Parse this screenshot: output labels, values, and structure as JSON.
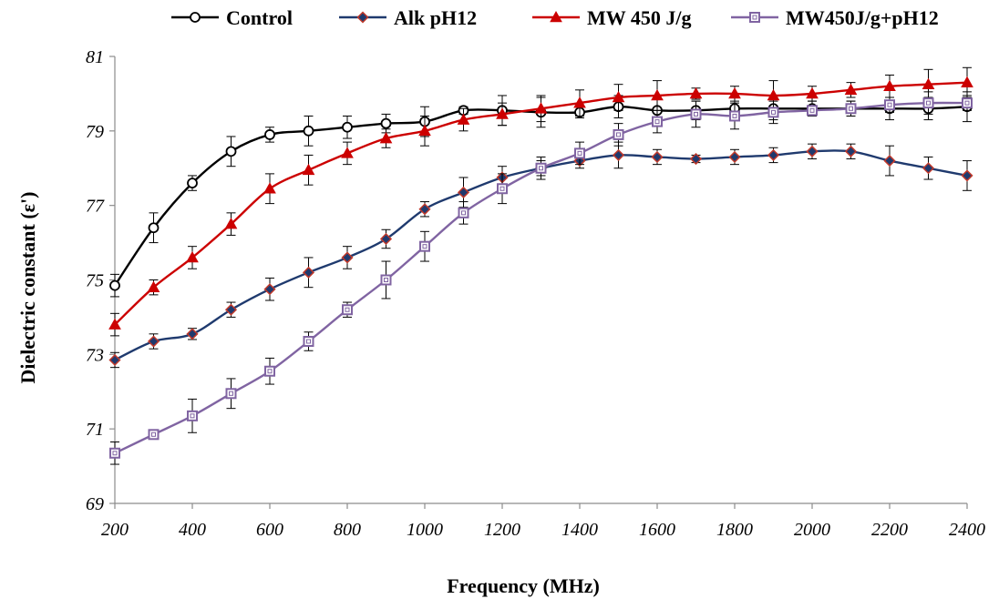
{
  "chart_data": {
    "type": "line",
    "title": "",
    "xlabel": "Frequency (MHz)",
    "ylabel": "Dielectric constant (ε')",
    "x": [
      200,
      300,
      400,
      500,
      600,
      700,
      800,
      900,
      1000,
      1100,
      1200,
      1300,
      1400,
      1500,
      1600,
      1700,
      1800,
      1900,
      2000,
      2100,
      2200,
      2300,
      2400
    ],
    "xticks": [
      "200",
      "400",
      "600",
      "800",
      "1000",
      "1200",
      "1400",
      "1600",
      "1800",
      "2000",
      "2200",
      "2400"
    ],
    "xtick_values": [
      200,
      400,
      600,
      800,
      1000,
      1200,
      1400,
      1600,
      1800,
      2000,
      2200,
      2400
    ],
    "yticks": [
      "69",
      "71",
      "73",
      "75",
      "77",
      "79",
      "81"
    ],
    "ytick_values": [
      69,
      71,
      73,
      75,
      77,
      79,
      81
    ],
    "xlim": [
      200,
      2400
    ],
    "ylim": [
      69,
      81
    ],
    "grid": false,
    "legend_position": "top",
    "error_bars": true,
    "series": [
      {
        "name": "Control",
        "color": "#000000",
        "marker": "circle-open",
        "marker_fill": "#ffffff",
        "values": [
          74.85,
          76.4,
          77.6,
          78.45,
          78.9,
          79.0,
          79.1,
          79.2,
          79.25,
          79.55,
          79.55,
          79.5,
          79.5,
          79.65,
          79.55,
          79.55,
          79.6,
          79.6,
          79.6,
          79.6,
          79.6,
          79.6,
          79.65
        ],
        "errors": [
          0.3,
          0.4,
          0.2,
          0.4,
          0.2,
          0.4,
          0.3,
          0.25,
          0.4,
          0.1,
          0.4,
          0.4,
          0.15,
          0.3,
          0.3,
          0.25,
          0.3,
          0.3,
          0.2,
          0.2,
          0.3,
          0.3,
          0.4
        ]
      },
      {
        "name": "Alk pH12",
        "color": "#1f3a6e",
        "marker": "diamond",
        "marker_fill": "#1f3a6e",
        "marker_stroke": "#c0392b",
        "values": [
          72.85,
          73.35,
          73.55,
          74.2,
          74.75,
          75.2,
          75.6,
          76.1,
          76.9,
          77.35,
          77.75,
          78.0,
          78.2,
          78.35,
          78.3,
          78.25,
          78.3,
          78.35,
          78.45,
          78.45,
          78.2,
          78.0,
          77.8
        ],
        "errors": [
          0.2,
          0.2,
          0.15,
          0.2,
          0.3,
          0.4,
          0.3,
          0.25,
          0.2,
          0.4,
          0.3,
          0.3,
          0.2,
          0.35,
          0.2,
          0.1,
          0.2,
          0.2,
          0.2,
          0.2,
          0.4,
          0.3,
          0.4
        ]
      },
      {
        "name": "MW 450 J/g",
        "color": "#cc0000",
        "marker": "triangle",
        "marker_fill": "#cc0000",
        "values": [
          73.8,
          74.8,
          75.6,
          76.5,
          77.45,
          77.95,
          78.4,
          78.8,
          79.0,
          79.3,
          79.45,
          79.6,
          79.75,
          79.9,
          79.95,
          80.0,
          80.0,
          79.95,
          80.0,
          80.1,
          80.2,
          80.25,
          80.3
        ],
        "errors": [
          0.3,
          0.2,
          0.3,
          0.3,
          0.4,
          0.4,
          0.3,
          0.25,
          0.4,
          0.3,
          0.3,
          0.35,
          0.35,
          0.35,
          0.4,
          0.15,
          0.2,
          0.4,
          0.2,
          0.2,
          0.3,
          0.4,
          0.4
        ]
      },
      {
        "name": "MW450J/g+pH12",
        "color": "#8064a2",
        "marker": "square-open",
        "marker_fill": "#ffffff",
        "values": [
          70.35,
          70.85,
          71.35,
          71.95,
          72.55,
          73.35,
          74.2,
          75.0,
          75.9,
          76.8,
          77.45,
          78.0,
          78.4,
          78.9,
          79.25,
          79.45,
          79.4,
          79.5,
          79.55,
          79.6,
          79.7,
          79.75,
          79.75
        ],
        "errors": [
          0.3,
          0.1,
          0.45,
          0.4,
          0.35,
          0.25,
          0.2,
          0.5,
          0.4,
          0.3,
          0.4,
          0.2,
          0.3,
          0.3,
          0.3,
          0.35,
          0.35,
          0.3,
          0.1,
          0.2,
          0.2,
          0.3,
          0.2
        ]
      }
    ]
  }
}
